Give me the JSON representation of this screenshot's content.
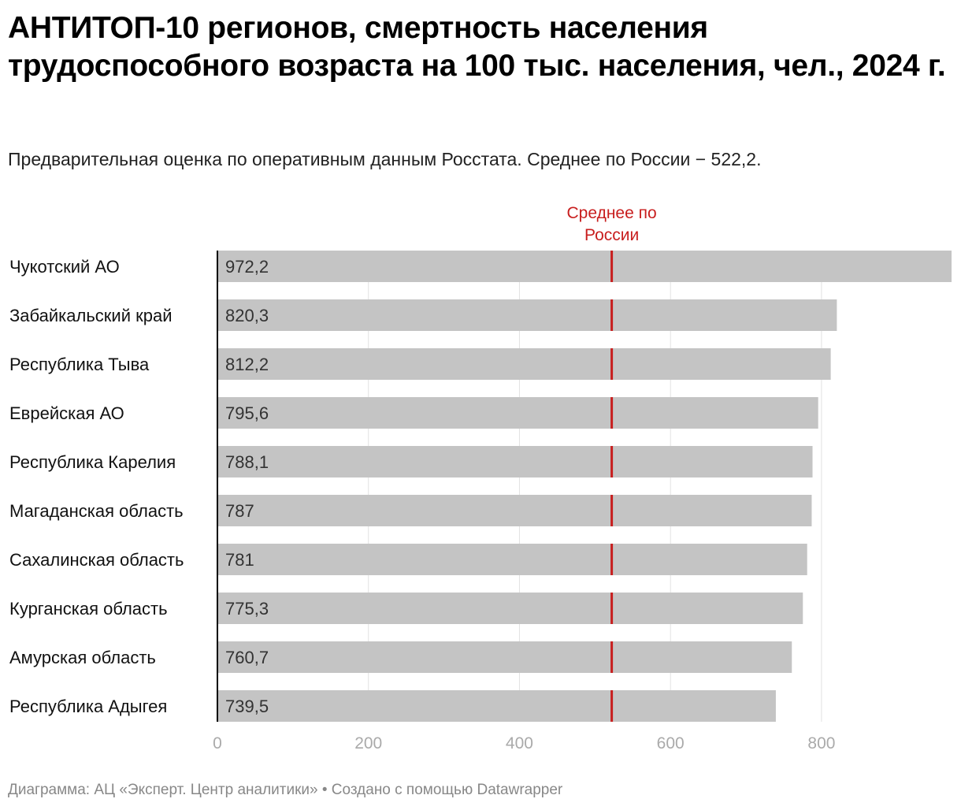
{
  "title": "АНТИТОП-10 регионов, смертность населения трудоспособного возраста на 100 тыс. населения, чел., 2024 г.",
  "subtitle": "Предварительная оценка по оперативным данным Росстата. Среднее по России − 522,2.",
  "footer": {
    "source_label": "Диаграмма: АЦ «Эксперт. Центр аналитики»",
    "separator": " • ",
    "credit": "Создано с помощью Datawrapper"
  },
  "colors": {
    "bar": "#c4c4c4",
    "reference_line": "#c81e1e",
    "axis": "#000000",
    "grid": "#e2e2e2",
    "tick_label": "#aaaaaa",
    "value_label": "#333333"
  },
  "chart_data": {
    "type": "bar",
    "orientation": "horizontal",
    "categories": [
      "Чукотский АО",
      "Забайкальский край",
      "Республика Тыва",
      "Еврейская АО",
      "Республика Карелия",
      "Магаданская область",
      "Сахалинская область",
      "Курганская область",
      "Амурская область",
      "Республика Адыгея"
    ],
    "values": [
      972.2,
      820.3,
      812.2,
      795.6,
      788.1,
      787,
      781,
      775.3,
      760.7,
      739.5
    ],
    "value_labels": [
      "972,2",
      "820,3",
      "812,2",
      "795,6",
      "788,1",
      "787",
      "781",
      "775,3",
      "760,7",
      "739,5"
    ],
    "xlim": [
      0,
      972.2
    ],
    "xticks": [
      0,
      200,
      400,
      600,
      800
    ],
    "xtick_labels": [
      "0",
      "200",
      "400",
      "600",
      "800"
    ],
    "grid": true,
    "reference_line": {
      "value": 522.2,
      "label_lines": [
        "Среднее по",
        "России"
      ]
    }
  }
}
